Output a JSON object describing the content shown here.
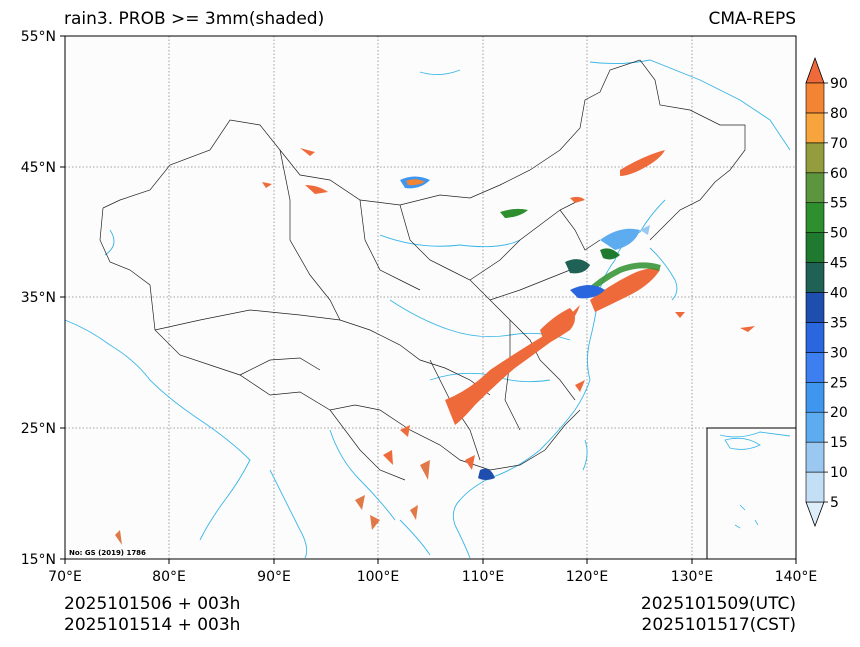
{
  "title": "rain3. PROB >= 3mm(shaded)",
  "model": "CMA-REPS",
  "map_note": "No: GS (2019) 1786",
  "lat_labels": [
    "55°N",
    "45°N",
    "35°N",
    "25°N",
    "15°N"
  ],
  "lon_labels": [
    "70°E",
    "80°E",
    "90°E",
    "100°E",
    "110°E",
    "120°E",
    "130°E",
    "140°E"
  ],
  "colorbar_labels": [
    "5",
    "10",
    "15",
    "20",
    "25",
    "30",
    "35",
    "40",
    "45",
    "50",
    "55",
    "60",
    "70",
    "80",
    "90"
  ],
  "colorbar_colors": [
    "#ddeefa",
    "#c3dff5",
    "#9ac8f1",
    "#5eacf0",
    "#3f96ee",
    "#3d7ef0",
    "#2a66dd",
    "#1f4fae",
    "#1f6155",
    "#1f7a2f",
    "#2e8f2e",
    "#5c953d",
    "#949d3e",
    "#f6a43b",
    "#f28434",
    "#ef6a3a"
  ],
  "footer": {
    "init_cst": "2025101506  +  003h",
    "init_bjt": "2025101514  +  003h",
    "valid_utc": "2025101509(UTC)",
    "valid_cst": "2025101517(CST)"
  }
}
